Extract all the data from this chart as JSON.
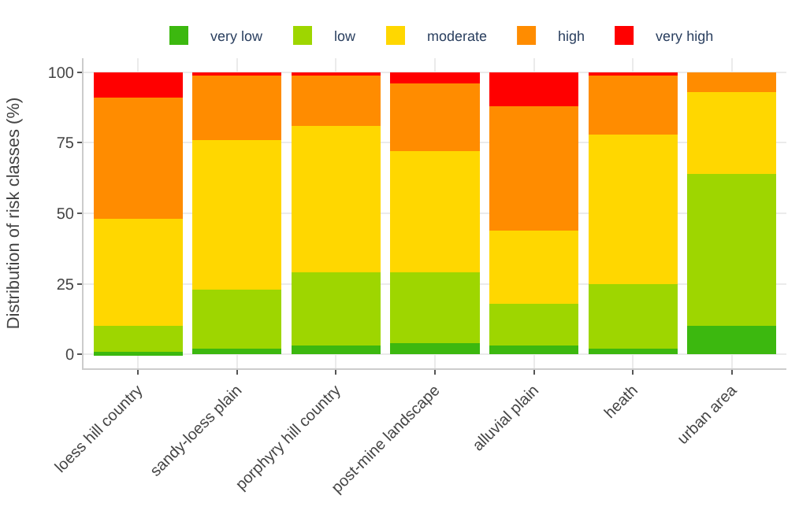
{
  "chart_data": {
    "type": "bar",
    "stacked": true,
    "ylabel": "Distribution of risk classes (%)",
    "categories": [
      "loess hill country",
      "sandy-loess plain",
      "porphyry hill country",
      "post-mine landscape",
      "alluvial plain",
      "heath",
      "urban area"
    ],
    "series": [
      {
        "name": "very low",
        "color": "#3cb80f",
        "values": [
          1,
          2,
          3,
          4,
          3,
          2,
          10
        ]
      },
      {
        "name": "low",
        "color": "#9ed600",
        "values": [
          9,
          21,
          26,
          25,
          15,
          23,
          54
        ]
      },
      {
        "name": "moderate",
        "color": "#ffd700",
        "values": [
          38,
          53,
          52,
          43,
          26,
          53,
          29
        ]
      },
      {
        "name": "high",
        "color": "#ff8c00",
        "values": [
          43,
          23,
          18,
          24,
          44,
          21,
          7
        ]
      },
      {
        "name": "very high",
        "color": "#ff0000",
        "values": [
          9,
          1,
          1,
          4,
          12,
          1,
          0
        ]
      }
    ],
    "ylim": [
      -5,
      105
    ],
    "yticks": [
      0,
      25,
      50,
      75,
      100
    ],
    "grid": true,
    "legend": "top"
  }
}
